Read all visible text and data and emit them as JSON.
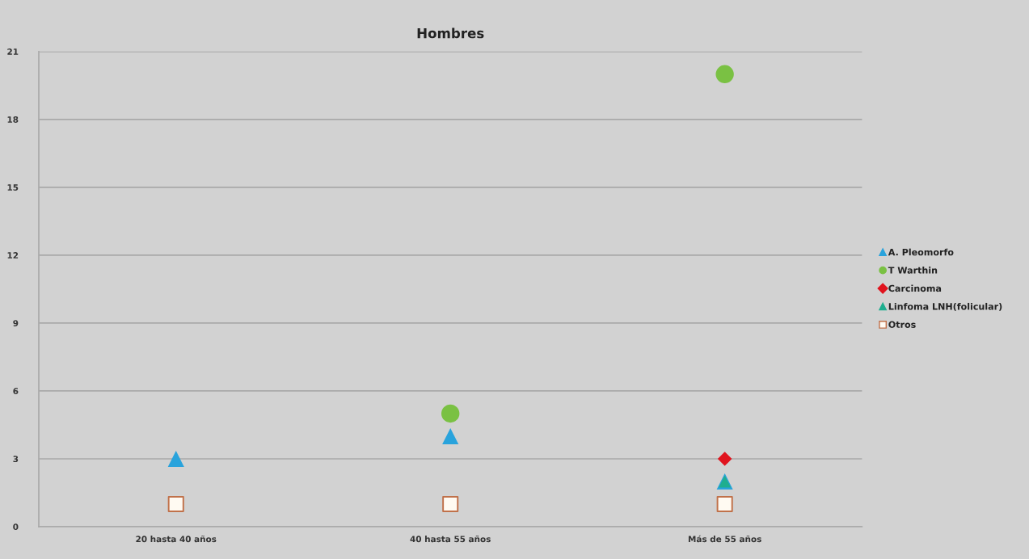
{
  "chart_data": {
    "type": "scatter",
    "title": "Hombres",
    "categories": [
      "20 hasta 40 años",
      "40 hasta 55 años",
      "Más de 55 años"
    ],
    "series": [
      {
        "name": "A. Pleomorfo",
        "color": "#29a3dc",
        "marker": "triangle",
        "values": [
          3,
          4,
          2
        ]
      },
      {
        "name": "T Warthin",
        "color": "#7ac143",
        "marker": "circle",
        "values": [
          null,
          5,
          20
        ]
      },
      {
        "name": "Carcinoma",
        "color": "#e0141e",
        "marker": "diamond",
        "values": [
          null,
          null,
          3
        ]
      },
      {
        "name": "Linfoma LNH(folicular)",
        "color": "#1fae8f",
        "marker": "triangle",
        "values": [
          null,
          null,
          2
        ]
      },
      {
        "name": "Otros",
        "color": "#c0714a",
        "marker": "square",
        "values": [
          1,
          1,
          1
        ]
      }
    ],
    "ylim": [
      0,
      21
    ],
    "yticks": [
      0,
      3,
      6,
      9,
      12,
      15,
      18,
      21
    ],
    "grid": "y",
    "legend": "right"
  }
}
